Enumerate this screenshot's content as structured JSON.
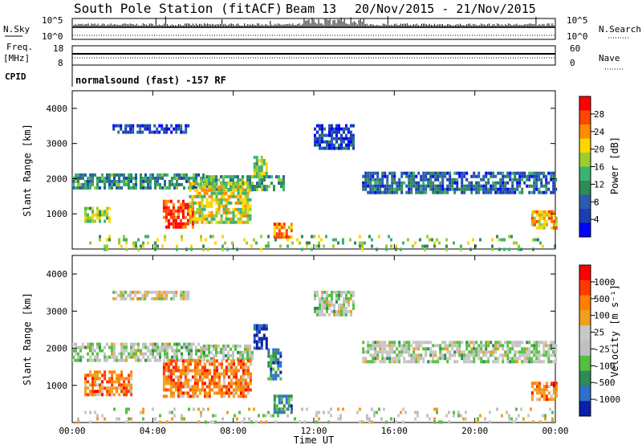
{
  "header": {
    "title": "South Pole Station (fitACF)",
    "beam": "Beam 13",
    "date_range": "20/Nov/2015 - 21/Nov/2015"
  },
  "mini_panels": {
    "nsky_label": "N.Sky",
    "nsky_ticks": [
      "10^5",
      "10^0"
    ],
    "nsearch_label": "N.Search",
    "nsearch_ticks": [
      "10^5",
      "10^0"
    ],
    "freq_label_line1": "Freq.",
    "freq_label_line2": "[MHz]",
    "freq_ticks": [
      "18",
      "8"
    ],
    "nave_label": "Nave",
    "nave_ticks": [
      "60",
      "0"
    ],
    "cpid_label": "CPID",
    "cpid_text": "normalsound (fast) -157 RF"
  },
  "colors": {
    "power": [
      "#0000ff",
      "#1a3fb0",
      "#2a5db0",
      "#2e8b57",
      "#3cb371",
      "#9acd32",
      "#ffd700",
      "#ff8c00",
      "#ff4500",
      "#ff0000"
    ],
    "velocity": [
      "#0b1fa8",
      "#2f6fc8",
      "#2e8b57",
      "#55c040",
      "#c0c0c0",
      "#c8c8c8",
      "#f0a020",
      "#ff8000",
      "#ff3a00",
      "#ff0000"
    ]
  },
  "chart_data": [
    {
      "type": "heatmap",
      "name": "power",
      "ylabel": "Slant Range [km]",
      "xlabel": "",
      "y_ticks": [
        "1000",
        "2000",
        "3000",
        "4000"
      ],
      "ylim": [
        0,
        4500
      ],
      "colorbar_label": "Power [dB]",
      "colorbar_ticks": [
        "4",
        "8",
        "12",
        "16",
        "20",
        "24",
        "28"
      ],
      "blobs": [
        {
          "t0": 0.0,
          "t1": 6.5,
          "r0": 1700,
          "r1": 2150,
          "level": 0.35
        },
        {
          "t0": 6.5,
          "t1": 10.5,
          "r0": 1700,
          "r1": 2100,
          "level": 0.4
        },
        {
          "t0": 9.0,
          "t1": 9.7,
          "r0": 2100,
          "r1": 2650,
          "level": 0.55
        },
        {
          "t0": 4.5,
          "t1": 6.0,
          "r0": 600,
          "r1": 1400,
          "level": 0.9
        },
        {
          "t0": 5.8,
          "t1": 8.9,
          "r0": 800,
          "r1": 1900,
          "level": 0.6
        },
        {
          "t0": 0.6,
          "t1": 1.9,
          "r0": 750,
          "r1": 1200,
          "level": 0.5
        },
        {
          "t0": 10.0,
          "t1": 10.9,
          "r0": 300,
          "r1": 750,
          "level": 0.75
        },
        {
          "t0": 14.4,
          "t1": 24.0,
          "r0": 1600,
          "r1": 2200,
          "level": 0.25
        },
        {
          "t0": 2.0,
          "t1": 5.8,
          "r0": 3300,
          "r1": 3550,
          "level": 0.15
        },
        {
          "t0": 12.0,
          "t1": 14.0,
          "r0": 2900,
          "r1": 3550,
          "level": 0.15
        },
        {
          "t0": 22.8,
          "t1": 24.0,
          "r0": 600,
          "r1": 1100,
          "level": 0.7
        },
        {
          "t0": 0.0,
          "t1": 24.0,
          "r0": 0,
          "r1": 400,
          "level": 0.5
        }
      ]
    },
    {
      "type": "heatmap",
      "name": "velocity",
      "ylabel": "Slant Range [km]",
      "xlabel": "Time UT",
      "y_ticks": [
        "1000",
        "2000",
        "3000",
        "4000"
      ],
      "x_ticks": [
        "00:00",
        "04:00",
        "08:00",
        "12:00",
        "16:00",
        "20:00",
        "00:00"
      ],
      "ylim": [
        0,
        4500
      ],
      "colorbar_label": "Velocity [m s⁻¹]",
      "colorbar_ticks": [
        "1000",
        "500",
        "100",
        "25",
        "-25",
        "-100",
        "-500",
        "-1000"
      ],
      "blobs": [
        {
          "t0": 0.0,
          "t1": 6.5,
          "r0": 1700,
          "r1": 2150,
          "level": 0.45
        },
        {
          "t0": 6.5,
          "t1": 9.0,
          "r0": 1700,
          "r1": 2100,
          "level": 0.45
        },
        {
          "t0": 9.0,
          "t1": 9.7,
          "r0": 2000,
          "r1": 2650,
          "level": 0.05
        },
        {
          "t0": 9.7,
          "t1": 10.4,
          "r0": 1200,
          "r1": 2000,
          "level": 0.2
        },
        {
          "t0": 4.5,
          "t1": 8.9,
          "r0": 700,
          "r1": 1700,
          "level": 0.75
        },
        {
          "t0": 0.6,
          "t1": 2.9,
          "r0": 750,
          "r1": 1400,
          "level": 0.75
        },
        {
          "t0": 10.0,
          "t1": 10.9,
          "r0": 300,
          "r1": 750,
          "level": 0.25
        },
        {
          "t0": 14.4,
          "t1": 24.0,
          "r0": 1600,
          "r1": 2200,
          "level": 0.45
        },
        {
          "t0": 2.0,
          "t1": 5.8,
          "r0": 3300,
          "r1": 3550,
          "level": 0.55
        },
        {
          "t0": 12.0,
          "t1": 14.0,
          "r0": 2900,
          "r1": 3550,
          "level": 0.45
        },
        {
          "t0": 22.8,
          "t1": 24.0,
          "r0": 600,
          "r1": 1100,
          "level": 0.75
        },
        {
          "t0": 0.0,
          "t1": 24.0,
          "r0": 0,
          "r1": 400,
          "level": 0.5
        }
      ]
    }
  ]
}
